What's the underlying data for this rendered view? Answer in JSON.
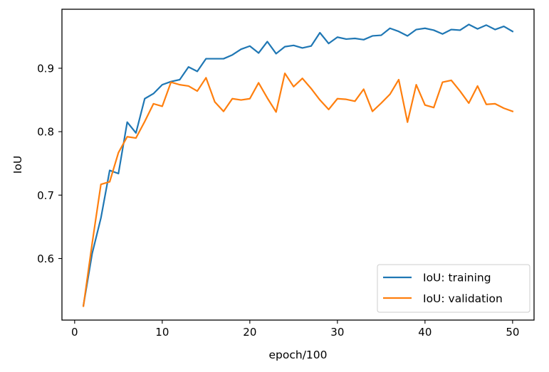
{
  "chart_data": {
    "type": "line",
    "xlabel": "epoch/100",
    "ylabel": "IoU",
    "xlim": [
      -1.45,
      52.45
    ],
    "ylim": [
      0.503,
      0.993
    ],
    "xticks": [
      0,
      10,
      20,
      30,
      40,
      50
    ],
    "yticks": [
      0.6,
      0.7,
      0.8,
      0.9
    ],
    "xtick_labels": [
      "0",
      "10",
      "20",
      "30",
      "40",
      "50"
    ],
    "ytick_labels": [
      "0.6",
      "0.7",
      "0.8",
      "0.9"
    ],
    "grid": false,
    "legend_position": "lower-right",
    "x": [
      1,
      2,
      3,
      4,
      5,
      6,
      7,
      8,
      9,
      10,
      11,
      12,
      13,
      14,
      15,
      16,
      17,
      18,
      19,
      20,
      21,
      22,
      23,
      24,
      25,
      26,
      27,
      28,
      29,
      30,
      31,
      32,
      33,
      34,
      35,
      36,
      37,
      38,
      39,
      40,
      41,
      42,
      43,
      44,
      45,
      46,
      47,
      48,
      49,
      50
    ],
    "series": [
      {
        "name": "IoU: training",
        "color": "#1f77b4",
        "values": [
          0.526,
          0.608,
          0.664,
          0.739,
          0.734,
          0.815,
          0.798,
          0.852,
          0.86,
          0.874,
          0.879,
          0.882,
          0.902,
          0.895,
          0.915,
          0.915,
          0.915,
          0.921,
          0.93,
          0.935,
          0.924,
          0.942,
          0.923,
          0.934,
          0.936,
          0.932,
          0.935,
          0.956,
          0.939,
          0.949,
          0.946,
          0.947,
          0.945,
          0.951,
          0.952,
          0.963,
          0.958,
          0.951,
          0.961,
          0.963,
          0.96,
          0.954,
          0.961,
          0.96,
          0.969,
          0.962,
          0.968,
          0.961,
          0.966,
          0.958
        ]
      },
      {
        "name": "IoU: validation",
        "color": "#ff7f0e",
        "values": [
          0.525,
          0.624,
          0.717,
          0.721,
          0.767,
          0.792,
          0.79,
          0.816,
          0.844,
          0.84,
          0.878,
          0.874,
          0.872,
          0.864,
          0.885,
          0.847,
          0.832,
          0.852,
          0.85,
          0.852,
          0.877,
          0.853,
          0.831,
          0.892,
          0.871,
          0.884,
          0.868,
          0.85,
          0.835,
          0.852,
          0.851,
          0.848,
          0.867,
          0.832,
          0.845,
          0.859,
          0.882,
          0.815,
          0.874,
          0.842,
          0.838,
          0.878,
          0.881,
          0.864,
          0.845,
          0.872,
          0.843,
          0.844,
          0.837,
          0.832
        ]
      }
    ]
  }
}
